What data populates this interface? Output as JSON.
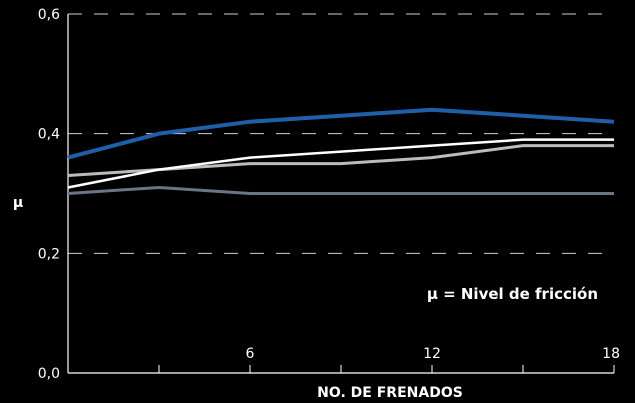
{
  "chart_data": {
    "type": "line",
    "title": "",
    "xlabel": "NO. DE FRENADOS",
    "ylabel": "µ",
    "xlim": [
      0,
      18
    ],
    "ylim": [
      0,
      0.6
    ],
    "x_ticks": [
      6,
      12,
      18
    ],
    "x_tick_labels": [
      "6",
      "12",
      "18"
    ],
    "y_ticks": [
      0,
      0.2,
      0.4,
      0.6
    ],
    "y_tick_labels": [
      "0,0",
      "0,2",
      "0,4",
      "0,6"
    ],
    "grid": "dashed horizontal",
    "annotation": "µ = Nivel de fricción",
    "background_color": "#000000",
    "x": [
      0,
      3,
      6,
      9,
      12,
      15,
      18
    ],
    "series": [
      {
        "color": "#1f5fa8",
        "values": [
          0.36,
          0.4,
          0.42,
          0.43,
          0.44,
          0.43,
          0.42
        ]
      },
      {
        "color": "#bcbcbc",
        "values": [
          0.33,
          0.34,
          0.35,
          0.35,
          0.36,
          0.38,
          0.38
        ]
      },
      {
        "color": "#ffffff",
        "values": [
          0.31,
          0.34,
          0.36,
          0.37,
          0.38,
          0.39,
          0.39
        ]
      },
      {
        "color": "#6a7585",
        "values": [
          0.3,
          0.31,
          0.3,
          0.3,
          0.3,
          0.3,
          0.3
        ]
      }
    ]
  }
}
